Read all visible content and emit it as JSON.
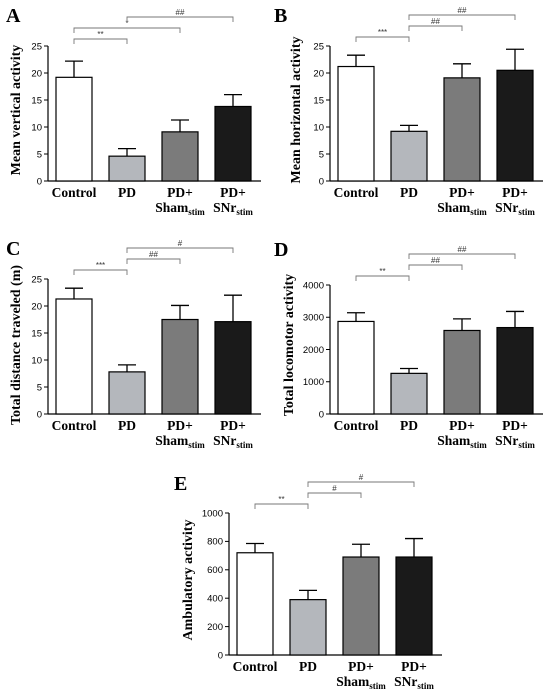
{
  "chart_data": [
    {
      "type": "bar",
      "panel": "A",
      "ylabel": "Mean vertical activity",
      "ylim": [
        0,
        25
      ],
      "yticks": [
        "0",
        "5",
        "10",
        "15",
        "20",
        "25"
      ],
      "categories": [
        "Control",
        "PD",
        "PD+ Sham_stim",
        "PD+ SNr_stim"
      ],
      "values": [
        19.2,
        4.6,
        9.1,
        13.8
      ],
      "errors": [
        3.0,
        1.4,
        2.2,
        2.2
      ],
      "significance": [
        {
          "from": 0,
          "to": 1,
          "label": "**"
        },
        {
          "from": 0,
          "to": 2,
          "label": "*"
        },
        {
          "from": 1,
          "to": 3,
          "label": "##"
        }
      ]
    },
    {
      "type": "bar",
      "panel": "B",
      "ylabel": "Mean horizontal activity",
      "ylim": [
        0,
        25
      ],
      "yticks": [
        "0",
        "5",
        "10",
        "15",
        "20",
        "25"
      ],
      "categories": [
        "Control",
        "PD",
        "PD+ Sham_stim",
        "PD+ SNr_stim"
      ],
      "values": [
        21.2,
        9.2,
        19.1,
        20.5
      ],
      "errors": [
        2.1,
        1.1,
        2.6,
        3.9
      ],
      "significance": [
        {
          "from": 0,
          "to": 1,
          "label": "***"
        },
        {
          "from": 1,
          "to": 2,
          "label": "##"
        },
        {
          "from": 1,
          "to": 3,
          "label": "##"
        }
      ]
    },
    {
      "type": "bar",
      "panel": "C",
      "ylabel": "Total distance traveled (m)",
      "ylim": [
        0,
        25
      ],
      "yticks": [
        "0",
        "5",
        "10",
        "15",
        "20",
        "25"
      ],
      "categories": [
        "Control",
        "PD",
        "PD+ Sham_stim",
        "PD+ SNr_stim"
      ],
      "values": [
        21.3,
        7.8,
        17.5,
        17.1
      ],
      "errors": [
        2.0,
        1.3,
        2.6,
        4.9
      ],
      "significance": [
        {
          "from": 0,
          "to": 1,
          "label": "***"
        },
        {
          "from": 1,
          "to": 2,
          "label": "##"
        },
        {
          "from": 1,
          "to": 3,
          "label": "#"
        }
      ]
    },
    {
      "type": "bar",
      "panel": "D",
      "ylabel": "Total locomotor activity",
      "ylim": [
        0,
        4000
      ],
      "yticks": [
        "0",
        "1000",
        "2000",
        "3000",
        "4000"
      ],
      "categories": [
        "Control",
        "PD",
        "PD+ Sham_stim",
        "PD+ SNr_stim"
      ],
      "values": [
        2870,
        1260,
        2590,
        2680
      ],
      "errors": [
        270,
        150,
        360,
        500
      ],
      "significance": [
        {
          "from": 0,
          "to": 1,
          "label": "**"
        },
        {
          "from": 1,
          "to": 2,
          "label": "##"
        },
        {
          "from": 1,
          "to": 3,
          "label": "##"
        }
      ]
    },
    {
      "type": "bar",
      "panel": "E",
      "ylabel": "Ambulatory activity",
      "ylim": [
        0,
        1000
      ],
      "yticks": [
        "0",
        "200",
        "400",
        "600",
        "800",
        "1000"
      ],
      "categories": [
        "Control",
        "PD",
        "PD+ Sham_stim",
        "PD+ SNr_stim"
      ],
      "values": [
        720,
        390,
        690,
        690
      ],
      "errors": [
        65,
        65,
        90,
        130
      ],
      "significance": [
        {
          "from": 0,
          "to": 1,
          "label": "**"
        },
        {
          "from": 1,
          "to": 2,
          "label": "#"
        },
        {
          "from": 1,
          "to": 3,
          "label": "#"
        }
      ]
    }
  ],
  "bar_colors": [
    "#ffffff",
    "#b4b7bc",
    "#7b7b7b",
    "#1a1a1a"
  ],
  "axis_labels": {
    "cat0": "Control",
    "cat1": "PD",
    "cat2_main": "PD+",
    "cat2_line2": "Sham",
    "cat2_sub": "stim",
    "cat3_main": "PD+",
    "cat3_line2": "SNr",
    "cat3_sub": "stim"
  }
}
